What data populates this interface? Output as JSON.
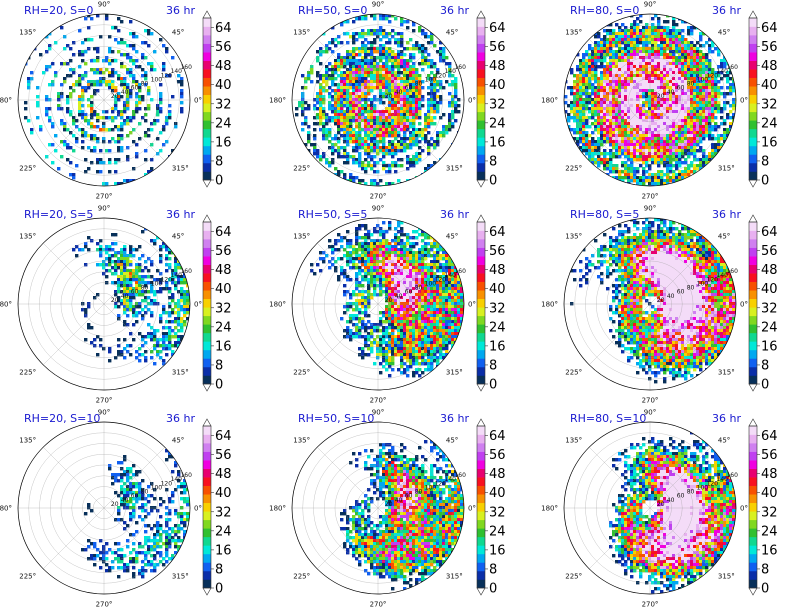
{
  "chart_data": [
    {
      "type": "heatmap",
      "projection": "polar",
      "label": "RH=20, S=0",
      "time": "36 hr",
      "rh": 20,
      "shear": 0
    },
    {
      "type": "heatmap",
      "projection": "polar",
      "label": "RH=50, S=0",
      "time": "36 hr",
      "rh": 50,
      "shear": 0
    },
    {
      "type": "heatmap",
      "projection": "polar",
      "label": "RH=80, S=0",
      "time": "36 hr",
      "rh": 80,
      "shear": 0
    },
    {
      "type": "heatmap",
      "projection": "polar",
      "label": "RH=20, S=5",
      "time": "36 hr",
      "rh": 20,
      "shear": 5
    },
    {
      "type": "heatmap",
      "projection": "polar",
      "label": "RH=50, S=5",
      "time": "36 hr",
      "rh": 50,
      "shear": 5
    },
    {
      "type": "heatmap",
      "projection": "polar",
      "label": "RH=80, S=5",
      "time": "36 hr",
      "rh": 80,
      "shear": 5
    },
    {
      "type": "heatmap",
      "projection": "polar",
      "label": "RH=20, S=10",
      "time": "36 hr",
      "rh": 20,
      "shear": 10
    },
    {
      "type": "heatmap",
      "projection": "polar",
      "label": "RH=50, S=10",
      "time": "36 hr",
      "rh": 50,
      "shear": 10
    },
    {
      "type": "heatmap",
      "projection": "polar",
      "label": "RH=80, S=10",
      "time": "36 hr",
      "rh": 80,
      "shear": 10
    }
  ],
  "shared": {
    "angle_ticks": [
      "0°",
      "45°",
      "90°",
      "135°",
      "180°",
      "225°",
      "270°",
      "315°"
    ],
    "radial_ticks": [
      "20",
      "40",
      "60",
      "80",
      "100",
      "120",
      "140",
      "160"
    ],
    "rmax": 160,
    "colorbar_ticks": [
      "0",
      "8",
      "16",
      "24",
      "32",
      "40",
      "48",
      "56",
      "64"
    ],
    "colorbar_range": [
      0,
      68
    ],
    "colorbar_colors": [
      "#08305a",
      "#0a2ea8",
      "#1060f0",
      "#00a8f0",
      "#00e8d8",
      "#10d890",
      "#30c030",
      "#80d820",
      "#d8f020",
      "#f8d000",
      "#f89000",
      "#f85000",
      "#f81020",
      "#e80070",
      "#f000e0",
      "#c040f0",
      "#d080f0",
      "#e8b0f0",
      "#f4dcf8"
    ]
  }
}
